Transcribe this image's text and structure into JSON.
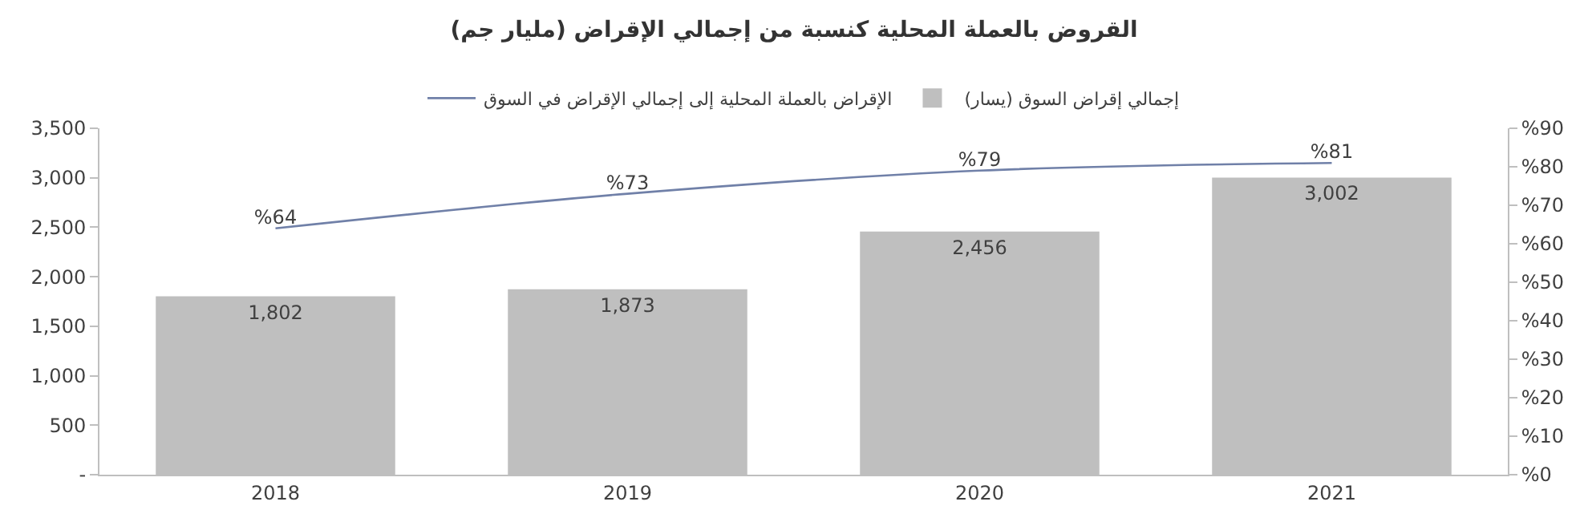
{
  "chart_data": {
    "type": "bar",
    "title": "القروض بالعملة المحلية كنسبة من إجمالي الإقراض (مليار جم)",
    "categories": [
      "2018",
      "2019",
      "2020",
      "2021"
    ],
    "series": [
      {
        "name": "إجمالي إقراض السوق (يسار)",
        "color": "#bfbfbf",
        "values": [
          1802,
          1873,
          2456,
          3002
        ],
        "value_labels": [
          "1,802",
          "1,873",
          "2,456",
          "3,002"
        ]
      },
      {
        "name": "الإقراض بالعملة المحلية إلى إجمالي الإقراض في السوق",
        "type": "line",
        "axis": "y2",
        "color": "#7080a8",
        "values": [
          64,
          73,
          79,
          81
        ],
        "value_labels": [
          "%64",
          "%73",
          "%79",
          "%81"
        ]
      }
    ],
    "ylim": [
      0,
      3500
    ],
    "yticks": [
      {
        "value": 0,
        "label": "-"
      },
      {
        "value": 500,
        "label": "500"
      },
      {
        "value": 1000,
        "label": "1,000"
      },
      {
        "value": 1500,
        "label": "1,500"
      },
      {
        "value": 2000,
        "label": "2,000"
      },
      {
        "value": 2500,
        "label": "2,500"
      },
      {
        "value": 3000,
        "label": "3,000"
      },
      {
        "value": 3500,
        "label": "3,500"
      }
    ],
    "y2lim": [
      0,
      90
    ],
    "y2ticks": [
      {
        "value": 0,
        "label": "%0"
      },
      {
        "value": 10,
        "label": "%10"
      },
      {
        "value": 20,
        "label": "%20"
      },
      {
        "value": 30,
        "label": "%30"
      },
      {
        "value": 40,
        "label": "%40"
      },
      {
        "value": 50,
        "label": "%50"
      },
      {
        "value": 60,
        "label": "%60"
      },
      {
        "value": 70,
        "label": "%70"
      },
      {
        "value": 80,
        "label": "%80"
      },
      {
        "value": 90,
        "label": "%90"
      }
    ],
    "legend": "top",
    "marker": "none",
    "line_style": "solid"
  }
}
